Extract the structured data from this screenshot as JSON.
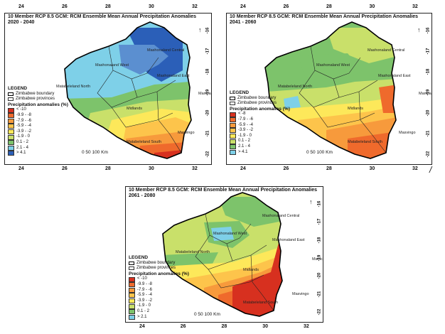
{
  "maps": [
    {
      "title_line1": "10 Member RCP 8.5 GCM: RCM Ensemble Mean Annual Precipitation Anomalies",
      "title_line2": "2020 - 2040",
      "legend_title": "LEGEND",
      "boundary_label": "Zimbabwe boundary",
      "provinces_label": "Zimbabwe provinces",
      "anomaly_title": "Precipitation anomalies (%)",
      "classes": [
        {
          "label": "< -10",
          "color": "#d7301f"
        },
        {
          "label": "-9.9 - -8",
          "color": "#ef6a2c"
        },
        {
          "label": "-7.9 - -6",
          "color": "#f79a3c"
        },
        {
          "label": "-5.9 - -4",
          "color": "#fdc44b"
        },
        {
          "label": "-3.9 - -2",
          "color": "#fde85a"
        },
        {
          "label": "-1.9 - 0",
          "color": "#c9e06a"
        },
        {
          "label": "0.1 - 2",
          "color": "#7dc36b"
        },
        {
          "label": "2.1 - 4",
          "color": "#7ed0e8"
        },
        {
          "label": "> 4.1",
          "color": "#2b5fb8"
        }
      ],
      "scale_label": "0   50  100 Km",
      "province_labels": [
        "Mashonaland West",
        "Mashonaland Central",
        "Mashonaland East",
        "Matabeleland North",
        "Midlands",
        "Manicaland",
        "Masvingo",
        "Matabeleland South"
      ],
      "lon_ticks": [
        "24",
        "26",
        "28",
        "30",
        "32"
      ],
      "lat_ticks": [
        "-16",
        "-17",
        "-18",
        "-19",
        "-20",
        "-21",
        "-22"
      ]
    },
    {
      "title_line1": "10 Member RCP 8.5  GCM: RCM Ensemble Mean Annual Precipitation Anomalies",
      "title_line2": "2041 - 2060",
      "legend_title": "LEGEND",
      "boundary_label": "Zimbabwe boundary",
      "provinces_label": "Zimbabwe provinces",
      "anomaly_title": "Precipitation anomalies (%)",
      "classes": [
        {
          "label": "< -8",
          "color": "#d7301f"
        },
        {
          "label": "-7.9 - -6",
          "color": "#ef6a2c"
        },
        {
          "label": "-5.9 - -4",
          "color": "#f79a3c"
        },
        {
          "label": "-3.9 - -2",
          "color": "#fdc44b"
        },
        {
          "label": "-1.9 - 0",
          "color": "#fde85a"
        },
        {
          "label": "0.1 - 2",
          "color": "#c9e06a"
        },
        {
          "label": "2.1 - 4",
          "color": "#7dc36b"
        },
        {
          "label": "> 4.1",
          "color": "#7ed0e8"
        }
      ],
      "scale_label": "0  50  100 Km",
      "province_labels": [
        "Mashonaland West",
        "Mashonaland Central",
        "Mashonaland East",
        "Matabeleland North",
        "Midlands",
        "Manicaland",
        "Masvingo",
        "Matabeleland South"
      ],
      "lon_ticks": [
        "24",
        "26",
        "28",
        "30",
        "32"
      ],
      "lat_ticks": [
        "-16",
        "-17",
        "-18",
        "-19",
        "-20",
        "-21",
        "-22"
      ]
    },
    {
      "title_line1": "10 Member RCP 8.5 GCM: RCM Ensemble Mean Annual Precipitation Anomalies",
      "title_line2": "2061 - 2080",
      "legend_title": "LEGEND",
      "boundary_label": "Zimbabwe boundary",
      "provinces_label": "Zimbabwe provinces",
      "anomaly_title": "Precipitation anomalies (%)",
      "classes": [
        {
          "label": "< -10",
          "color": "#d7301f"
        },
        {
          "label": "-9.9 - -8",
          "color": "#ef6a2c"
        },
        {
          "label": "-7.9 - -6",
          "color": "#f79a3c"
        },
        {
          "label": "-5.9 - -4",
          "color": "#fdc44b"
        },
        {
          "label": "-3.9 - -2",
          "color": "#fde85a"
        },
        {
          "label": "-1.9 - 0",
          "color": "#c9e06a"
        },
        {
          "label": "0.1 - 2",
          "color": "#7dc36b"
        },
        {
          "label": "> 2.1",
          "color": "#7ed0e8"
        }
      ],
      "scale_label": "0   50  100 Km",
      "province_labels": [
        "Mashonaland West",
        "Mashonaland Central",
        "Mashonaland East",
        "Matabeleland North",
        "Midlands",
        "Manicaland",
        "Masvingo",
        "Matabeleland South"
      ],
      "lon_ticks": [
        "24",
        "26",
        "28",
        "30",
        "32"
      ],
      "lat_ticks": [
        "-16",
        "-17",
        "-18",
        "-19",
        "-20",
        "-21",
        "-22"
      ]
    }
  ]
}
